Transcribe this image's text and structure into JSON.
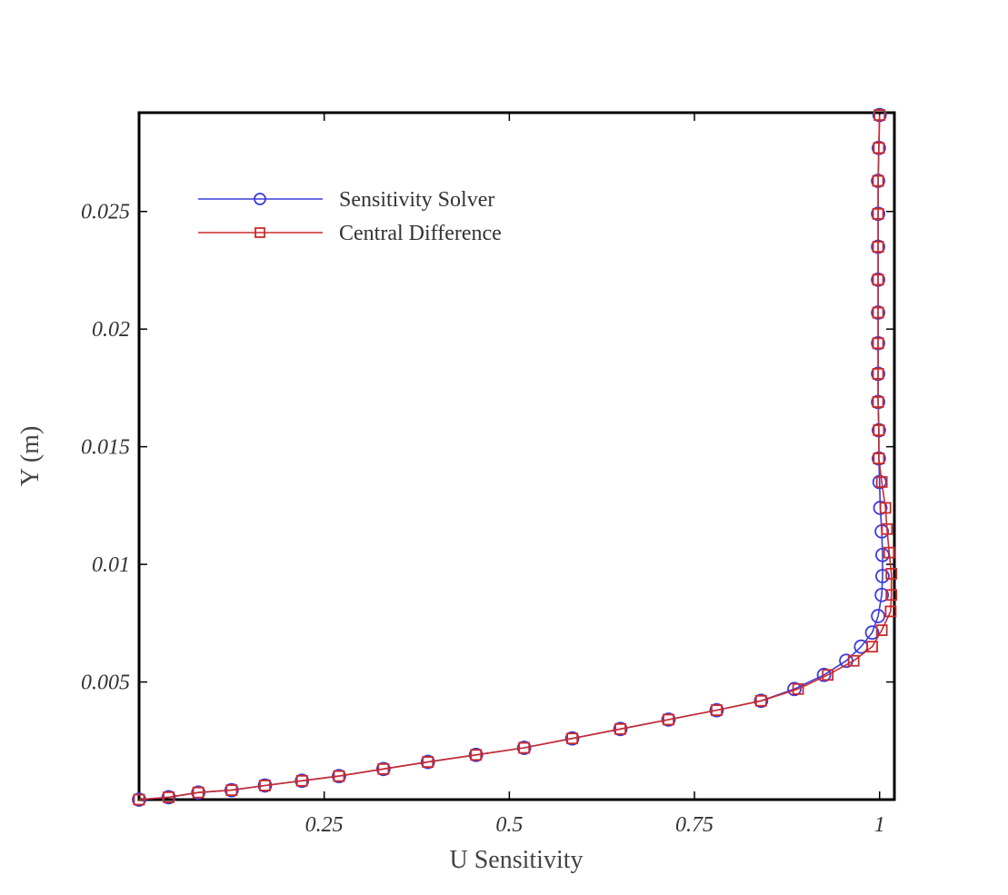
{
  "chart_data": {
    "type": "line",
    "xlabel": "U Sensitivity",
    "ylabel": "Y (m)",
    "xlim": [
      0,
      1.02
    ],
    "ylim": [
      0,
      0.0292
    ],
    "x_ticks": [
      {
        "value": 0.25,
        "label": "0.25"
      },
      {
        "value": 0.5,
        "label": "0.5"
      },
      {
        "value": 0.75,
        "label": "0.75"
      },
      {
        "value": 1.0,
        "label": "1"
      }
    ],
    "y_ticks": [
      {
        "value": 0.005,
        "label": "0.005"
      },
      {
        "value": 0.01,
        "label": "0.01"
      },
      {
        "value": 0.015,
        "label": "0.015"
      },
      {
        "value": 0.02,
        "label": "0.02"
      },
      {
        "value": 0.025,
        "label": "0.025"
      }
    ],
    "grid": false,
    "legend_position": "top-left",
    "series": [
      {
        "name": "Sensitivity Solver",
        "color": "#3b3bdc",
        "marker": "circle",
        "points": [
          [
            0.0,
            0.0
          ],
          [
            0.04,
            0.0001
          ],
          [
            0.08,
            0.0003
          ],
          [
            0.125,
            0.0004
          ],
          [
            0.17,
            0.0006
          ],
          [
            0.22,
            0.0008
          ],
          [
            0.27,
            0.001
          ],
          [
            0.33,
            0.0013
          ],
          [
            0.39,
            0.0016
          ],
          [
            0.455,
            0.0019
          ],
          [
            0.52,
            0.0022
          ],
          [
            0.585,
            0.0026
          ],
          [
            0.65,
            0.003
          ],
          [
            0.715,
            0.0034
          ],
          [
            0.78,
            0.0038
          ],
          [
            0.84,
            0.0042
          ],
          [
            0.885,
            0.0047
          ],
          [
            0.925,
            0.0053
          ],
          [
            0.955,
            0.0059
          ],
          [
            0.975,
            0.0065
          ],
          [
            0.99,
            0.0071
          ],
          [
            0.998,
            0.0078
          ],
          [
            1.003,
            0.0087
          ],
          [
            1.004,
            0.0095
          ],
          [
            1.004,
            0.0104
          ],
          [
            1.003,
            0.0114
          ],
          [
            1.001,
            0.0124
          ],
          [
            1.0,
            0.0135
          ],
          [
            0.999,
            0.0145
          ],
          [
            0.999,
            0.0157
          ],
          [
            0.998,
            0.0169
          ],
          [
            0.998,
            0.0181
          ],
          [
            0.998,
            0.0194
          ],
          [
            0.998,
            0.0207
          ],
          [
            0.998,
            0.0221
          ],
          [
            0.998,
            0.0235
          ],
          [
            0.998,
            0.0249
          ],
          [
            0.998,
            0.0263
          ],
          [
            0.999,
            0.0277
          ],
          [
            1.0,
            0.0291
          ]
        ]
      },
      {
        "name": "Central Difference",
        "color": "#cc2a2a",
        "marker": "square",
        "points": [
          [
            0.0,
            0.0
          ],
          [
            0.04,
            0.0001
          ],
          [
            0.08,
            0.0003
          ],
          [
            0.125,
            0.0004
          ],
          [
            0.17,
            0.0006
          ],
          [
            0.22,
            0.0008
          ],
          [
            0.27,
            0.001
          ],
          [
            0.33,
            0.0013
          ],
          [
            0.39,
            0.0016
          ],
          [
            0.455,
            0.0019
          ],
          [
            0.52,
            0.0022
          ],
          [
            0.585,
            0.0026
          ],
          [
            0.65,
            0.003
          ],
          [
            0.715,
            0.0034
          ],
          [
            0.78,
            0.0038
          ],
          [
            0.84,
            0.0042
          ],
          [
            0.89,
            0.0047
          ],
          [
            0.93,
            0.0053
          ],
          [
            0.965,
            0.0059
          ],
          [
            0.99,
            0.0065
          ],
          [
            1.003,
            0.0072
          ],
          [
            1.015,
            0.008
          ],
          [
            1.016,
            0.0087
          ],
          [
            1.016,
            0.0096
          ],
          [
            1.013,
            0.0105
          ],
          [
            1.01,
            0.0115
          ],
          [
            1.008,
            0.0124
          ],
          [
            1.003,
            0.0135
          ],
          [
            0.999,
            0.0145
          ],
          [
            0.999,
            0.0157
          ],
          [
            0.998,
            0.0169
          ],
          [
            0.998,
            0.0181
          ],
          [
            0.998,
            0.0194
          ],
          [
            0.998,
            0.0207
          ],
          [
            0.998,
            0.0221
          ],
          [
            0.998,
            0.0235
          ],
          [
            0.998,
            0.0249
          ],
          [
            0.998,
            0.0263
          ],
          [
            0.999,
            0.0277
          ],
          [
            1.0,
            0.0291
          ]
        ]
      }
    ]
  }
}
